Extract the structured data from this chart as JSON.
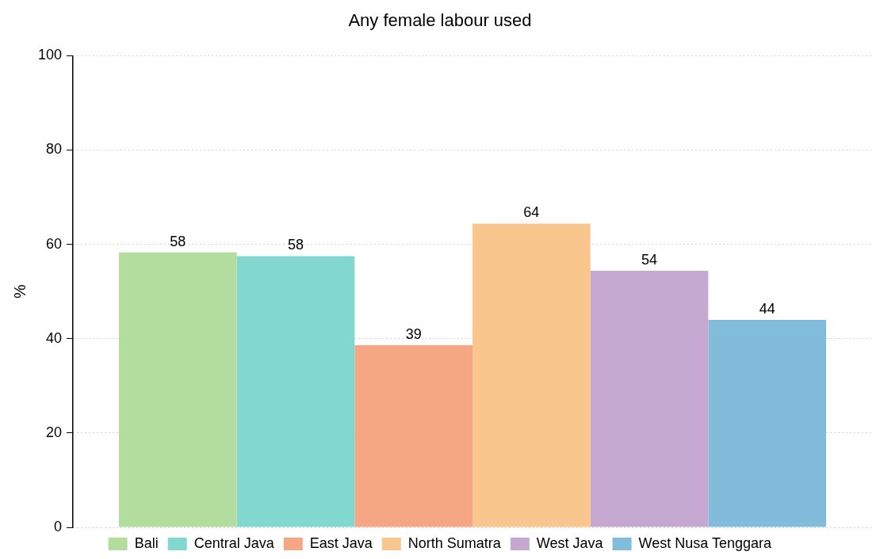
{
  "chart_data": {
    "type": "bar",
    "title": "Any female labour used",
    "ylabel": "%",
    "categories": [
      null
    ],
    "series": [
      {
        "name": "Bali",
        "color": "#b2dd9f",
        "values": [
          58.3
        ],
        "value_labels": [
          "58"
        ]
      },
      {
        "name": "Central Java",
        "color": "#82d8cf",
        "values": [
          57.5
        ],
        "value_labels": [
          "58"
        ]
      },
      {
        "name": "East Java",
        "color": "#f5a683",
        "values": [
          38.6
        ],
        "value_labels": [
          "39"
        ]
      },
      {
        "name": "North Sumatra",
        "color": "#f9c78e",
        "values": [
          64.4
        ],
        "value_labels": [
          "64"
        ]
      },
      {
        "name": "West Java",
        "color": "#c4a8d0",
        "values": [
          54.4
        ],
        "value_labels": [
          "54"
        ]
      },
      {
        "name": "West Nusa Tenggara",
        "color": "#81bdda",
        "values": [
          44
        ],
        "value_labels": [
          "44"
        ]
      }
    ],
    "ylim": [
      0,
      100
    ],
    "yticks": [
      0,
      20,
      40,
      60,
      80,
      100
    ],
    "grid": "y",
    "legend": "bottom",
    "tick_labels": "y"
  }
}
